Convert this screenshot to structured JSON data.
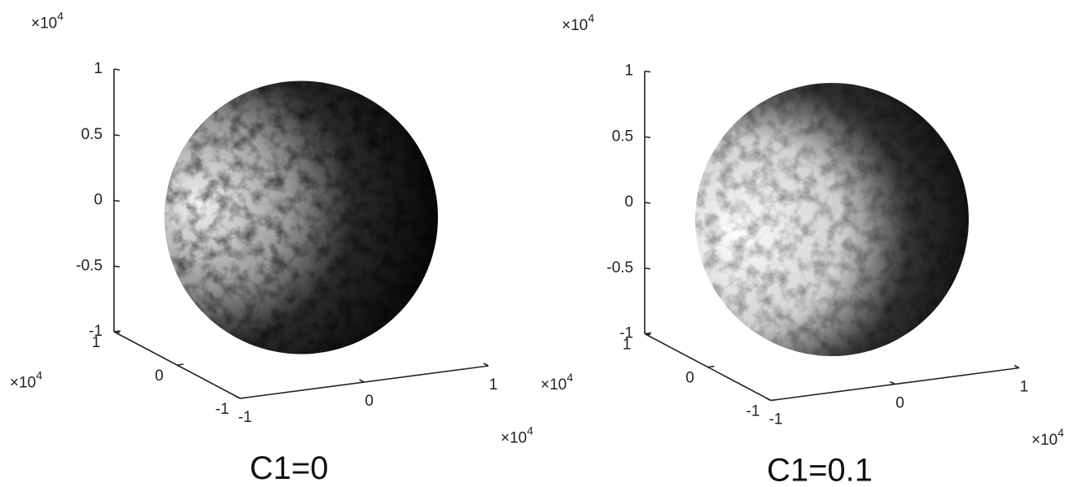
{
  "chart_data": [
    {
      "type": "sphere3d",
      "caption": "C1=0",
      "xlim": [
        -1,
        1
      ],
      "xticks": [
        -1,
        0,
        1
      ],
      "ylim": [
        -1,
        1
      ],
      "yticks": [
        -1,
        0,
        1
      ],
      "zlim": [
        -1,
        1
      ],
      "zticks": [
        -1,
        -0.5,
        0,
        0.5,
        1
      ],
      "multiplier": {
        "base": "×10",
        "exponent": 4
      }
    },
    {
      "type": "sphere3d",
      "caption": "C1=0.1",
      "xlim": [
        -1,
        1
      ],
      "xticks": [
        -1,
        0,
        1
      ],
      "ylim": [
        -1,
        1
      ],
      "yticks": [
        -1,
        0,
        1
      ],
      "zlim": [
        -1,
        1
      ],
      "zticks": [
        -1,
        -0.5,
        0,
        0.5,
        1
      ],
      "multiplier": {
        "base": "×10",
        "exponent": 4
      }
    }
  ]
}
